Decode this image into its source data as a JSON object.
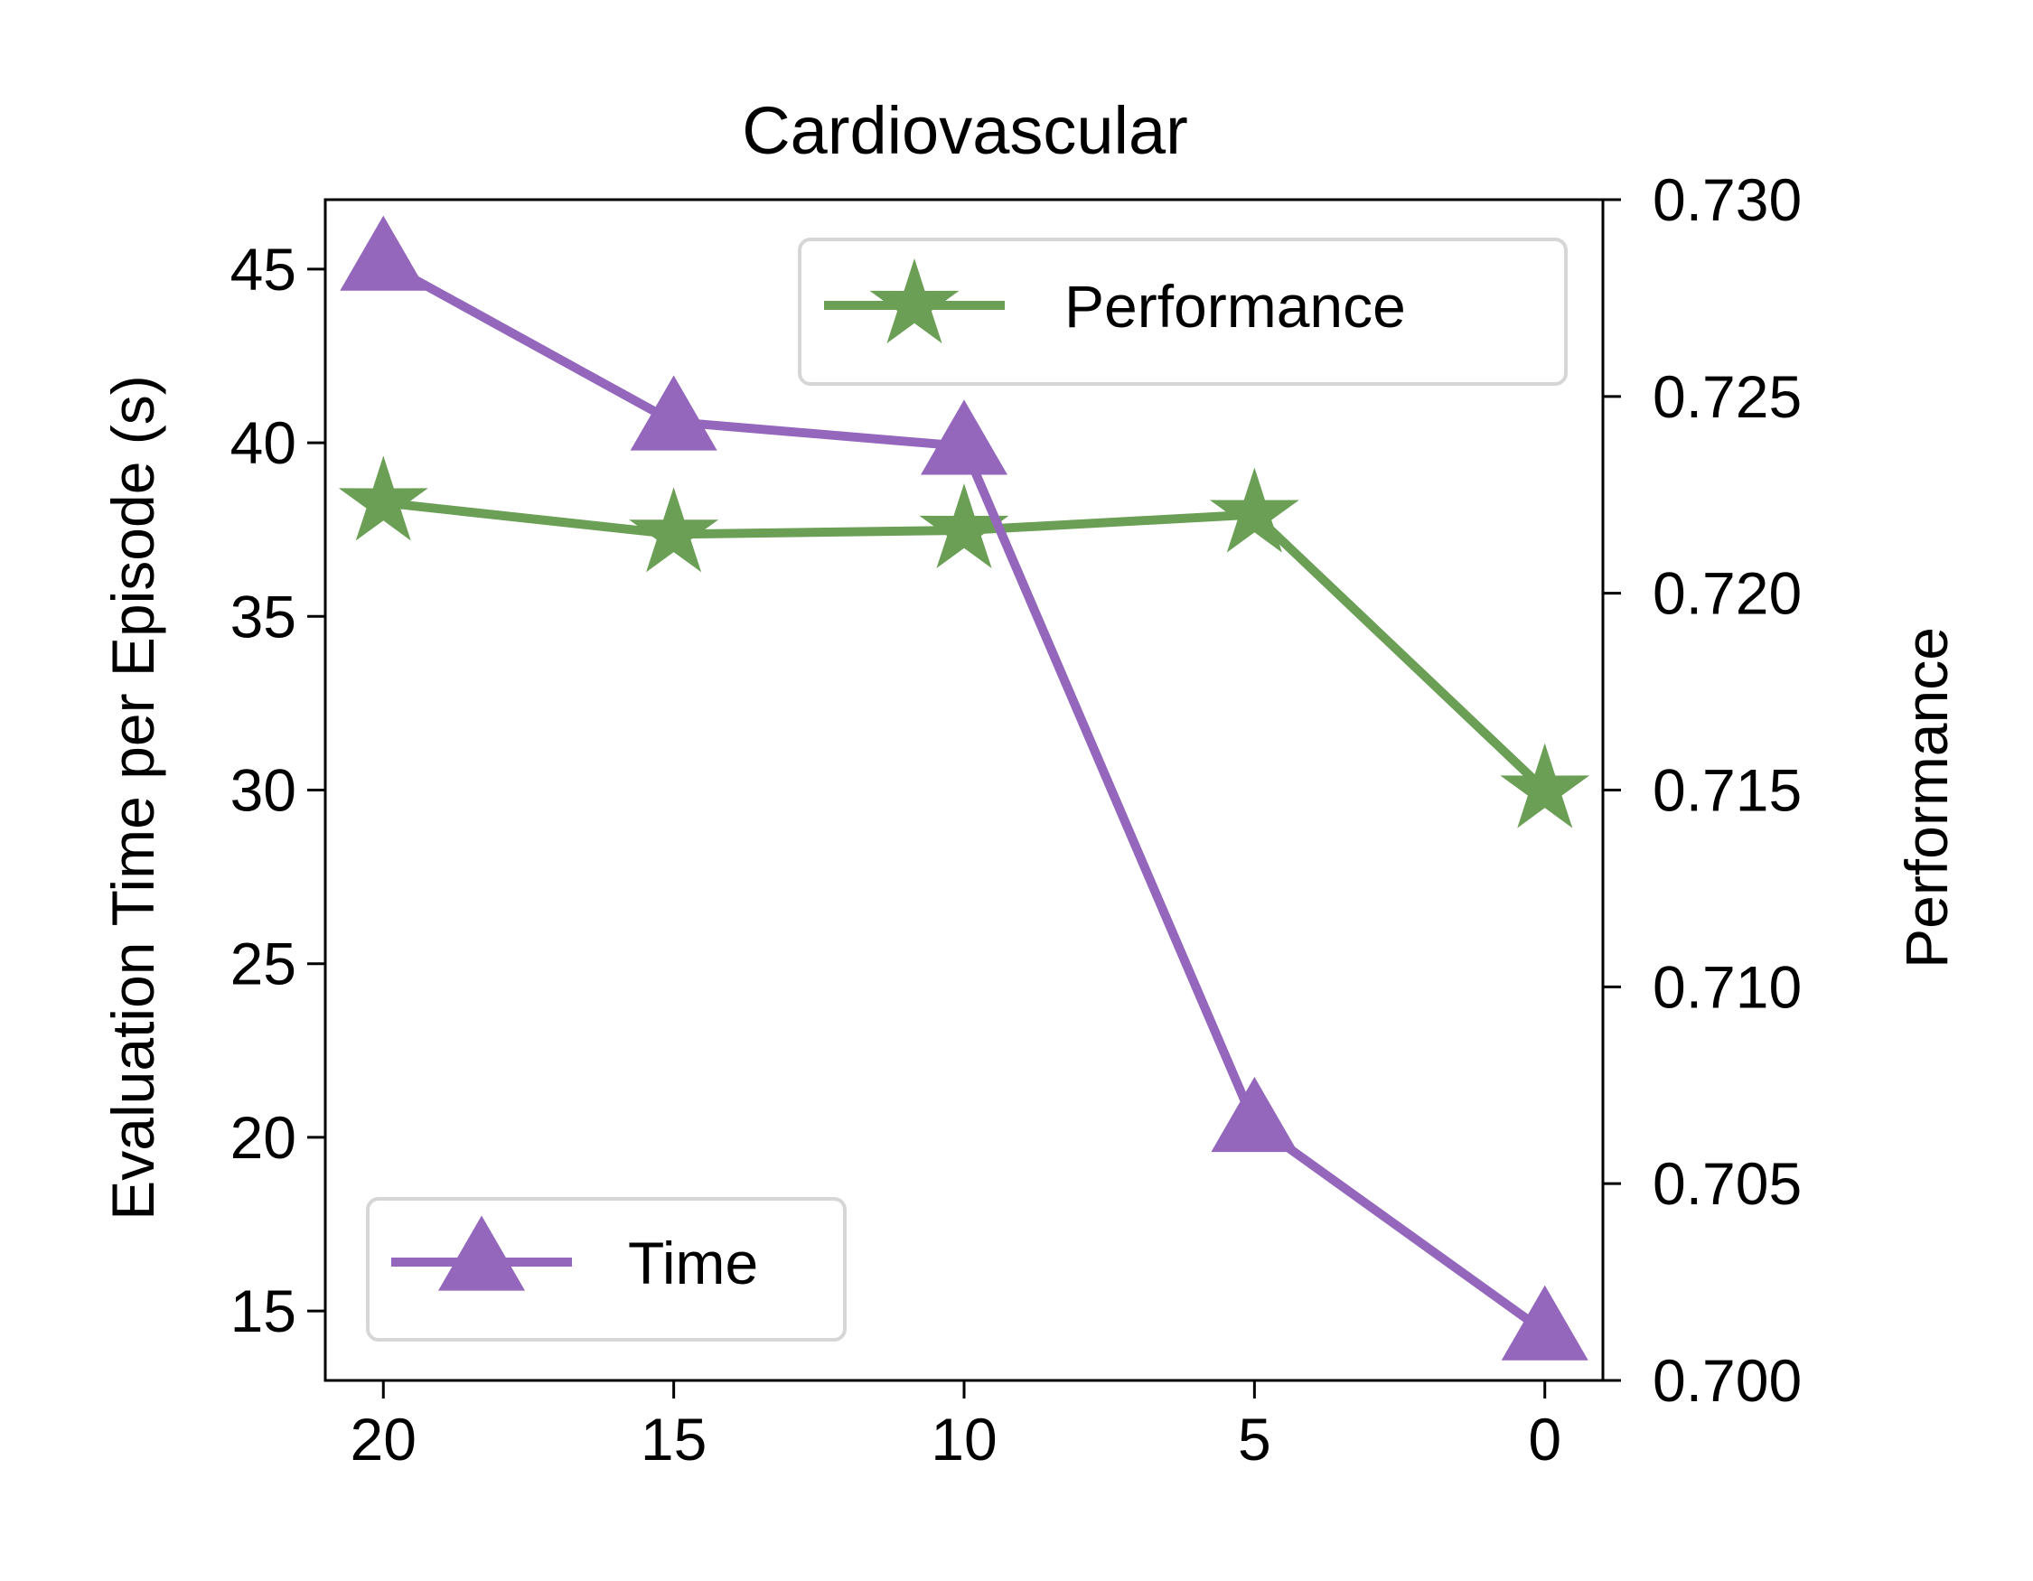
{
  "chart_data": {
    "type": "line",
    "title": "Cardiovascular",
    "xlabel": "",
    "ylabel_left": "Evaluation Time per Episode (s)",
    "ylabel_right": "Performance",
    "x": [
      20,
      15,
      10,
      5,
      0
    ],
    "x_tick_labels": [
      "20",
      "15",
      "10",
      "5",
      "0"
    ],
    "xlim": [
      21,
      -1
    ],
    "x_inverted": true,
    "ylim_left": [
      13,
      47
    ],
    "ylim_right": [
      0.7,
      0.73
    ],
    "y_left_ticks": [
      15,
      20,
      25,
      30,
      35,
      40,
      45
    ],
    "y_left_tick_labels": [
      "15",
      "20",
      "25",
      "30",
      "35",
      "40",
      "45"
    ],
    "y_right_ticks": [
      0.7,
      0.705,
      0.71,
      0.715,
      0.72,
      0.725,
      0.73
    ],
    "y_right_tick_labels": [
      "0.700",
      "0.705",
      "0.710",
      "0.715",
      "0.720",
      "0.725",
      "0.730"
    ],
    "grid": false,
    "series": [
      {
        "name": "Time",
        "axis": "left",
        "marker": "triangle",
        "color": "#9467bd",
        "values": [
          45.2,
          40.6,
          39.9,
          20.4,
          14.4
        ],
        "legend_position": "lower-left"
      },
      {
        "name": "Performance",
        "axis": "right",
        "marker": "star",
        "color": "#6a9f55",
        "values": [
          0.7223,
          0.7215,
          0.7216,
          0.722,
          0.715
        ],
        "legend_position": "upper-right"
      }
    ]
  }
}
